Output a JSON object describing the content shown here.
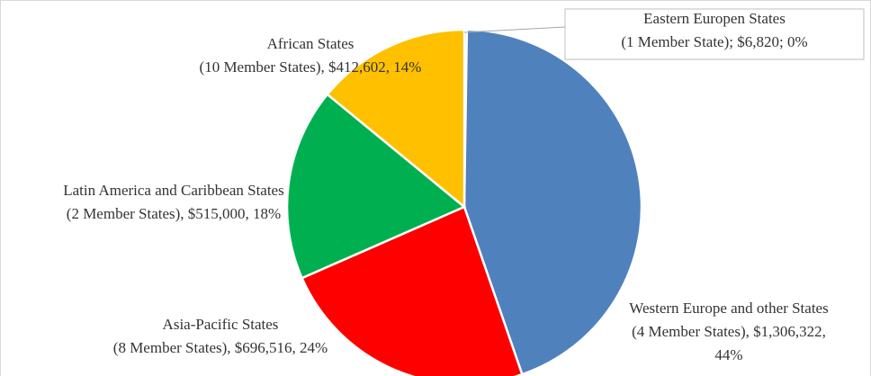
{
  "chart_data": {
    "type": "pie",
    "categories": [
      "Eastern Europen States",
      "Western Europe and other States",
      "Asia-Pacific States",
      "Latin America and Caribbean States",
      "African States"
    ],
    "values": [
      6820,
      1306322,
      696516,
      515000,
      412602
    ],
    "value_labels": [
      [
        "(1 Member State); $6,820; 0%"
      ],
      [
        "(4 Member States), $1,306,322,",
        "44%"
      ],
      [
        "(8 Member States), $696,516, 24%"
      ],
      [
        "(2 Member States), $515,000, 18%"
      ],
      [
        "(10 Member States), $412,602, 14%"
      ]
    ],
    "colors": [
      "#a5a5a5",
      "#4f81bd",
      "#ff0000",
      "#00b050",
      "#ffc000"
    ]
  }
}
